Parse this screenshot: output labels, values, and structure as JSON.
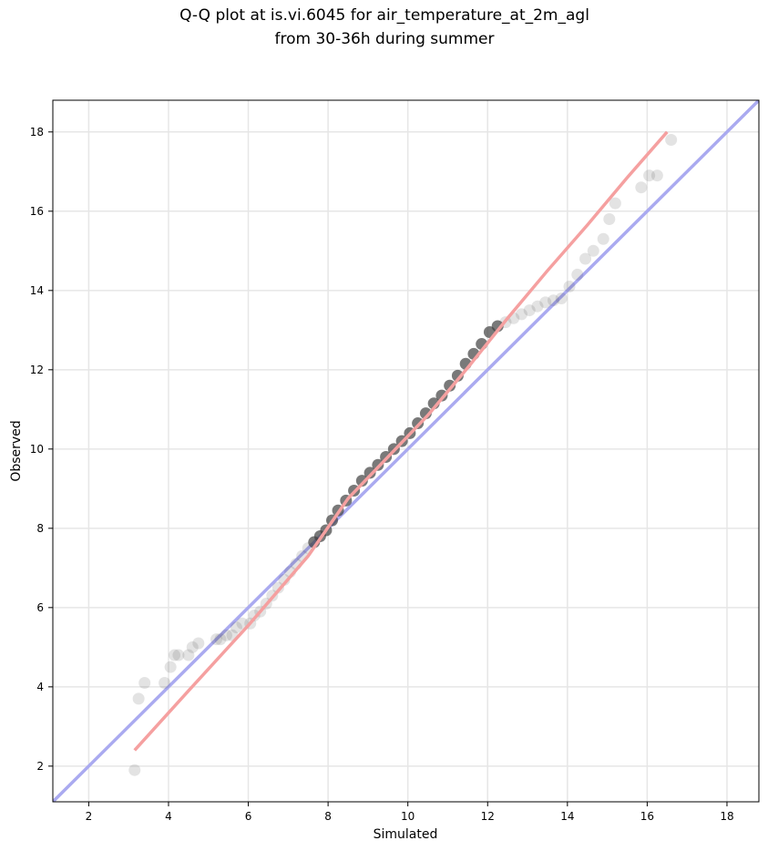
{
  "chart_data": {
    "type": "scatter",
    "title_line1": "Q-Q plot at is.vi.6045 for air_temperature_at_2m_agl",
    "title_line2": "from 30-36h during summer",
    "xlabel": "Simulated",
    "ylabel": "Observed",
    "xlim": [
      1.1,
      18.8
    ],
    "ylim": [
      1.1,
      18.8
    ],
    "xticks": [
      2,
      4,
      6,
      8,
      10,
      12,
      14,
      16,
      18
    ],
    "yticks": [
      2,
      4,
      6,
      8,
      10,
      12,
      14,
      16,
      18
    ],
    "grid": true,
    "colors": {
      "points": "#404040",
      "reference_line": "#aaaaf0",
      "fit_line": "#f5a0a0",
      "dense_overlay_blue": "#0a0a8c",
      "dense_overlay_red": "#8c0a0a"
    },
    "reference_line": {
      "x": [
        1.1,
        18.8
      ],
      "y": [
        1.1,
        18.8
      ]
    },
    "fit_line": {
      "x": [
        3.15,
        4.5,
        6.0,
        7.5,
        8.5,
        9.5,
        10.5,
        11.5,
        12.5,
        13.5,
        14.5,
        15.5,
        16.5
      ],
      "y": [
        2.4,
        3.9,
        5.55,
        7.3,
        8.75,
        9.8,
        10.85,
        12.05,
        13.3,
        14.5,
        15.65,
        16.85,
        18.0
      ]
    },
    "points": {
      "x": [
        3.15,
        3.25,
        3.4,
        3.9,
        4.05,
        4.15,
        4.25,
        4.5,
        4.6,
        4.75,
        5.2,
        5.3,
        5.45,
        5.6,
        5.7,
        5.85,
        6.05,
        6.15,
        6.3,
        6.45,
        6.6,
        6.75,
        6.9,
        7.05,
        7.2,
        7.35,
        7.5,
        7.65,
        7.8,
        7.95,
        8.1,
        8.25,
        8.45,
        8.65,
        8.85,
        9.05,
        9.25,
        9.45,
        9.65,
        9.85,
        10.05,
        10.25,
        10.45,
        10.65,
        10.85,
        11.05,
        11.25,
        11.45,
        11.65,
        11.85,
        12.05,
        12.25,
        12.45,
        12.65,
        12.85,
        13.05,
        13.25,
        13.45,
        13.65,
        13.85,
        14.05,
        14.25,
        14.45,
        14.65,
        14.9,
        15.05,
        15.2,
        15.85,
        16.05,
        16.25,
        16.6
      ],
      "y": [
        1.9,
        3.7,
        4.1,
        4.1,
        4.5,
        4.8,
        4.8,
        4.8,
        5.0,
        5.1,
        5.2,
        5.2,
        5.3,
        5.3,
        5.5,
        5.6,
        5.6,
        5.8,
        5.9,
        6.1,
        6.3,
        6.5,
        6.7,
        6.9,
        7.1,
        7.3,
        7.5,
        7.65,
        7.8,
        7.95,
        8.2,
        8.45,
        8.7,
        8.95,
        9.2,
        9.4,
        9.6,
        9.8,
        10.0,
        10.2,
        10.4,
        10.65,
        10.9,
        11.15,
        11.35,
        11.6,
        11.85,
        12.15,
        12.4,
        12.65,
        12.95,
        13.1,
        13.2,
        13.3,
        13.4,
        13.5,
        13.6,
        13.7,
        13.75,
        13.8,
        14.1,
        14.4,
        14.8,
        15.0,
        15.3,
        15.8,
        16.2,
        16.6,
        16.9,
        16.9,
        17.8
      ]
    }
  }
}
